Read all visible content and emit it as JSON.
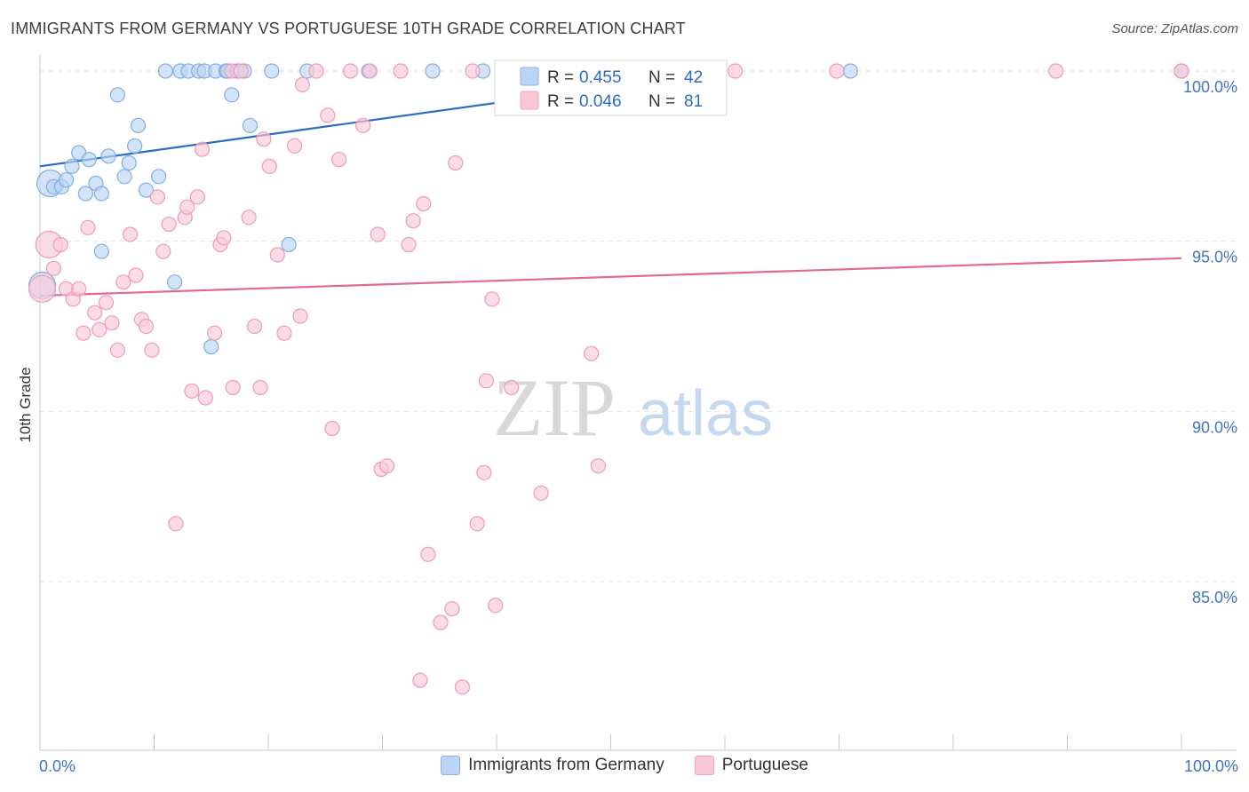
{
  "header": {
    "title": "IMMIGRANTS FROM GERMANY VS PORTUGUESE 10TH GRADE CORRELATION CHART",
    "source": "Source: ZipAtlas.com"
  },
  "watermark": {
    "zip": "ZIP",
    "atlas": "atlas"
  },
  "chart_data": {
    "type": "scatter",
    "xlabel": "",
    "ylabel": "10th Grade",
    "xlim": [
      0,
      100
    ],
    "ylim": [
      80.5,
      101.2
    ],
    "x_tick_labels": [
      {
        "value": 0,
        "label": "0.0%"
      },
      {
        "value": 100,
        "label": "100.0%"
      }
    ],
    "y_tick_labels": [
      {
        "value": 85,
        "label": "85.0%"
      },
      {
        "value": 90,
        "label": "90.0%"
      },
      {
        "value": 95,
        "label": "95.0%"
      },
      {
        "value": 100,
        "label": "100.0%"
      }
    ],
    "legend": {
      "position": "top-center",
      "entries": [
        {
          "series": "Immigrants from Germany",
          "r_label": "R =",
          "r_value": "0.455",
          "n_label": "N =",
          "n_value": "42"
        },
        {
          "series": "Portuguese",
          "r_label": "R =",
          "r_value": "0.046",
          "n_label": "N =",
          "n_value": "81"
        }
      ]
    },
    "series": [
      {
        "name": "Immigrants from Germany",
        "color": "#7faee3",
        "fill": "#bcd4f5",
        "line_color": "#2b6cc4",
        "trend": {
          "x": [
            0,
            60
          ],
          "y": [
            97.2,
            100.0
          ]
        },
        "points": [
          [
            0.2,
            93.7
          ],
          [
            0.9,
            96.7
          ],
          [
            1.2,
            96.6
          ],
          [
            1.9,
            96.6
          ],
          [
            2.3,
            96.8
          ],
          [
            2.8,
            97.2
          ],
          [
            3.4,
            97.6
          ],
          [
            4.0,
            96.4
          ],
          [
            4.3,
            97.4
          ],
          [
            4.9,
            96.7
          ],
          [
            5.4,
            96.4
          ],
          [
            5.4,
            94.7
          ],
          [
            6.0,
            97.5
          ],
          [
            6.8,
            99.3
          ],
          [
            7.4,
            96.9
          ],
          [
            7.8,
            97.3
          ],
          [
            8.3,
            97.8
          ],
          [
            8.6,
            98.4
          ],
          [
            9.3,
            96.5
          ],
          [
            10.4,
            96.9
          ],
          [
            11.0,
            100.0
          ],
          [
            11.8,
            93.8
          ],
          [
            12.3,
            100.0
          ],
          [
            13.0,
            100.0
          ],
          [
            13.9,
            100.0
          ],
          [
            14.4,
            100.0
          ],
          [
            15.0,
            91.9
          ],
          [
            15.4,
            100.0
          ],
          [
            16.3,
            100.0
          ],
          [
            16.4,
            100.0
          ],
          [
            16.8,
            99.3
          ],
          [
            17.3,
            100.0
          ],
          [
            17.9,
            100.0
          ],
          [
            18.4,
            98.4
          ],
          [
            20.3,
            100.0
          ],
          [
            21.8,
            94.9
          ],
          [
            23.4,
            100.0
          ],
          [
            28.8,
            100.0
          ],
          [
            34.4,
            100.0
          ],
          [
            38.8,
            100.0
          ],
          [
            71.0,
            100.0
          ],
          [
            100.0,
            100.0
          ]
        ]
      },
      {
        "name": "Portuguese",
        "color": "#f09ab5",
        "fill": "#f9c9d8",
        "line_color": "#e16a92",
        "trend": {
          "x": [
            0,
            100
          ],
          "y": [
            93.4,
            94.5
          ]
        },
        "points": [
          [
            0.2,
            93.6
          ],
          [
            0.8,
            94.9
          ],
          [
            1.2,
            94.2
          ],
          [
            1.8,
            94.9
          ],
          [
            2.3,
            93.6
          ],
          [
            2.9,
            93.3
          ],
          [
            3.4,
            93.6
          ],
          [
            3.8,
            92.3
          ],
          [
            4.2,
            95.4
          ],
          [
            4.8,
            92.9
          ],
          [
            5.2,
            92.4
          ],
          [
            5.8,
            93.2
          ],
          [
            6.3,
            92.6
          ],
          [
            6.8,
            91.8
          ],
          [
            7.3,
            93.8
          ],
          [
            7.9,
            95.2
          ],
          [
            8.4,
            94.0
          ],
          [
            8.9,
            92.7
          ],
          [
            9.3,
            92.5
          ],
          [
            9.8,
            91.8
          ],
          [
            10.3,
            96.3
          ],
          [
            10.8,
            94.7
          ],
          [
            11.3,
            95.5
          ],
          [
            11.9,
            86.7
          ],
          [
            12.7,
            95.7
          ],
          [
            12.9,
            96.0
          ],
          [
            13.3,
            90.6
          ],
          [
            13.8,
            96.3
          ],
          [
            14.2,
            97.7
          ],
          [
            14.5,
            90.4
          ],
          [
            15.3,
            92.3
          ],
          [
            15.8,
            94.9
          ],
          [
            16.1,
            95.1
          ],
          [
            16.8,
            100.0
          ],
          [
            16.9,
            90.7
          ],
          [
            17.6,
            100.0
          ],
          [
            18.3,
            95.7
          ],
          [
            18.8,
            92.5
          ],
          [
            19.3,
            90.7
          ],
          [
            19.6,
            98.0
          ],
          [
            20.1,
            97.2
          ],
          [
            20.8,
            94.6
          ],
          [
            21.4,
            92.3
          ],
          [
            22.3,
            97.8
          ],
          [
            22.8,
            92.8
          ],
          [
            23.0,
            99.6
          ],
          [
            24.2,
            100.0
          ],
          [
            25.2,
            98.7
          ],
          [
            25.6,
            89.5
          ],
          [
            26.2,
            97.4
          ],
          [
            27.2,
            100.0
          ],
          [
            28.3,
            98.4
          ],
          [
            28.9,
            100.0
          ],
          [
            29.6,
            95.2
          ],
          [
            29.9,
            88.3
          ],
          [
            30.4,
            88.4
          ],
          [
            31.6,
            100.0
          ],
          [
            32.3,
            94.9
          ],
          [
            32.7,
            95.6
          ],
          [
            33.3,
            82.1
          ],
          [
            33.6,
            96.1
          ],
          [
            34.0,
            85.8
          ],
          [
            35.1,
            83.8
          ],
          [
            36.1,
            84.2
          ],
          [
            36.4,
            97.3
          ],
          [
            37.0,
            81.9
          ],
          [
            37.9,
            100.0
          ],
          [
            38.3,
            86.7
          ],
          [
            38.9,
            88.2
          ],
          [
            39.1,
            90.9
          ],
          [
            39.6,
            93.3
          ],
          [
            39.9,
            84.3
          ],
          [
            41.3,
            90.7
          ],
          [
            43.2,
            100.0
          ],
          [
            43.9,
            87.6
          ],
          [
            48.3,
            91.7
          ],
          [
            48.9,
            88.4
          ],
          [
            60.9,
            100.0
          ],
          [
            69.8,
            100.0
          ],
          [
            89.0,
            100.0
          ],
          [
            100.0,
            100.0
          ]
        ]
      }
    ]
  }
}
